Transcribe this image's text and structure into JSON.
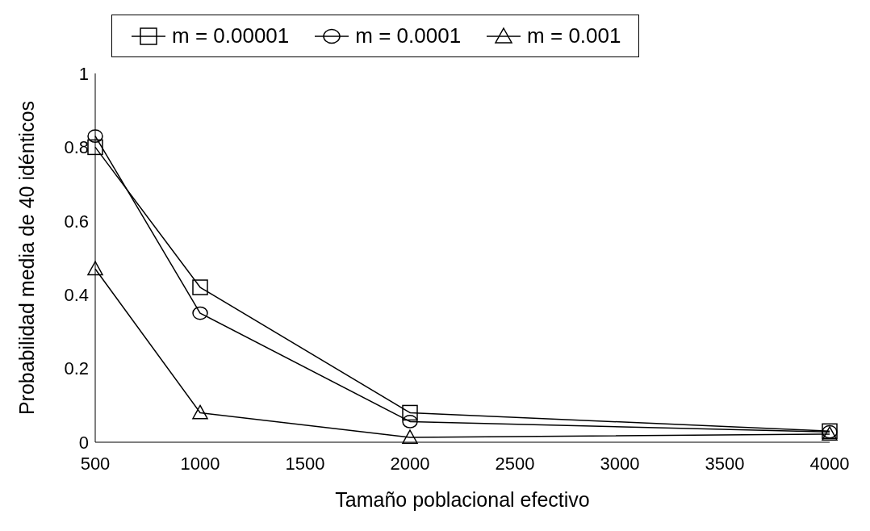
{
  "chart_data": {
    "type": "line",
    "xlabel": "Tamaño poblacional efectivo",
    "ylabel": "Probabilidad media de 40 idénticos",
    "x": [
      500,
      1000,
      2000,
      4000
    ],
    "series": [
      {
        "name": "m = 0.00001",
        "color": "#000000",
        "marker": "square",
        "values": [
          0.8,
          0.42,
          0.08,
          0.03
        ]
      },
      {
        "name": "m = 0.0001",
        "color": "#000000",
        "marker": "circle",
        "values": [
          0.83,
          0.35,
          0.056,
          0.028
        ]
      },
      {
        "name": "m = 0.001",
        "color": "#000000",
        "marker": "triangle",
        "values": [
          0.47,
          0.08,
          0.013,
          0.022
        ]
      }
    ],
    "xlim": [
      500,
      4000
    ],
    "xticks": [
      500,
      1000,
      1500,
      2000,
      2500,
      3000,
      3500,
      4000
    ],
    "ylim": [
      0,
      1
    ],
    "yticks": [
      0,
      0.2,
      0.4,
      0.6,
      0.8,
      1
    ],
    "grid": false,
    "legend": "top",
    "line_style": "solid"
  }
}
